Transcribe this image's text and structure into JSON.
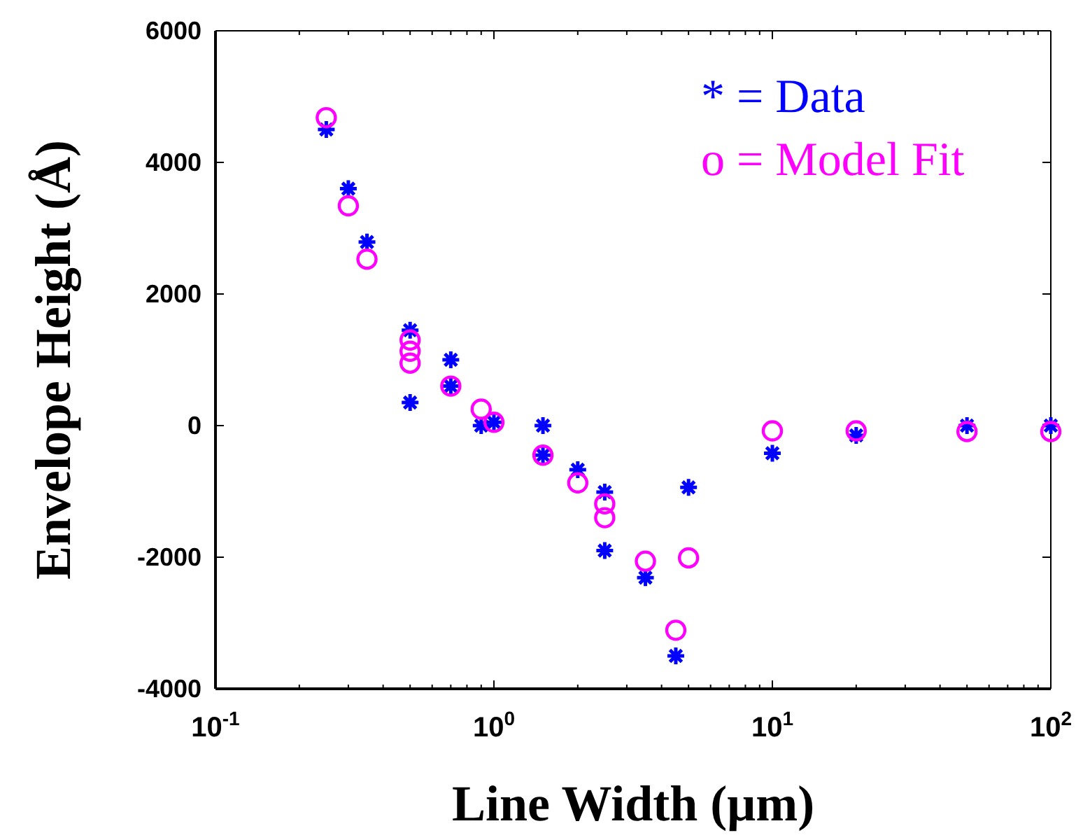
{
  "chart_data": {
    "type": "scatter",
    "xlabel": "Line Width (μm)",
    "ylabel": "Envelope Height (Å)",
    "log": "x",
    "grid": false,
    "xlim": [
      0.1,
      100
    ],
    "ylim": [
      -4000,
      6000
    ],
    "xticks": [
      {
        "value": 0.1,
        "label": "10$^{-1}$"
      },
      {
        "value": 0.2,
        "label": null
      },
      {
        "value": 0.3,
        "label": null
      },
      {
        "value": 0.4,
        "label": null
      },
      {
        "value": 0.5,
        "label": null
      },
      {
        "value": 0.6,
        "label": null
      },
      {
        "value": 0.7,
        "label": null
      },
      {
        "value": 0.8,
        "label": null
      },
      {
        "value": 0.9,
        "label": null
      },
      {
        "value": 1,
        "label": "10$^{0}$"
      },
      {
        "value": 2,
        "label": null
      },
      {
        "value": 3,
        "label": null
      },
      {
        "value": 4,
        "label": null
      },
      {
        "value": 5,
        "label": null
      },
      {
        "value": 6,
        "label": null
      },
      {
        "value": 7,
        "label": null
      },
      {
        "value": 8,
        "label": null
      },
      {
        "value": 9,
        "label": null
      },
      {
        "value": 10,
        "label": "10$^{1}$"
      },
      {
        "value": 20,
        "label": null
      },
      {
        "value": 30,
        "label": null
      },
      {
        "value": 40,
        "label": null
      },
      {
        "value": 50,
        "label": null
      },
      {
        "value": 60,
        "label": null
      },
      {
        "value": 70,
        "label": null
      },
      {
        "value": 80,
        "label": null
      },
      {
        "value": 90,
        "label": null
      },
      {
        "value": 100,
        "label": "10$^{2}$"
      }
    ],
    "yticks": [
      -4000,
      -2000,
      0,
      2000,
      4000,
      6000
    ],
    "series": [
      {
        "name": "* = Data",
        "color": "#0000ff",
        "marker": "cross",
        "x": [
          0.25,
          0.3,
          0.35,
          0.5,
          0.5,
          0.7,
          0.7,
          0.9,
          1,
          1.5,
          1.5,
          2,
          2.5,
          2.5,
          3.5,
          4.5,
          5,
          10,
          20,
          50,
          100
        ],
        "values": [
          4500,
          3600,
          2790,
          1450,
          350,
          1000,
          600,
          0,
          50,
          0,
          -450,
          -670,
          -1010,
          -1900,
          -2310,
          -3500,
          -940,
          -420,
          -150,
          0,
          0
        ]
      },
      {
        "name": "o = Model Fit",
        "color": "#ff00ff",
        "marker": "circle",
        "x": [
          0.25,
          0.3,
          0.35,
          0.5,
          0.5,
          0.5,
          0.7,
          0.9,
          1,
          1.5,
          2,
          2.5,
          2.5,
          3.5,
          4.5,
          5,
          10,
          20,
          50,
          100
        ],
        "values": [
          4680,
          3340,
          2530,
          1300,
          1130,
          950,
          600,
          250,
          50,
          -450,
          -870,
          -1190,
          -1400,
          -2060,
          -3110,
          -2010,
          -80,
          -80,
          -90,
          -90
        ]
      }
    ]
  }
}
